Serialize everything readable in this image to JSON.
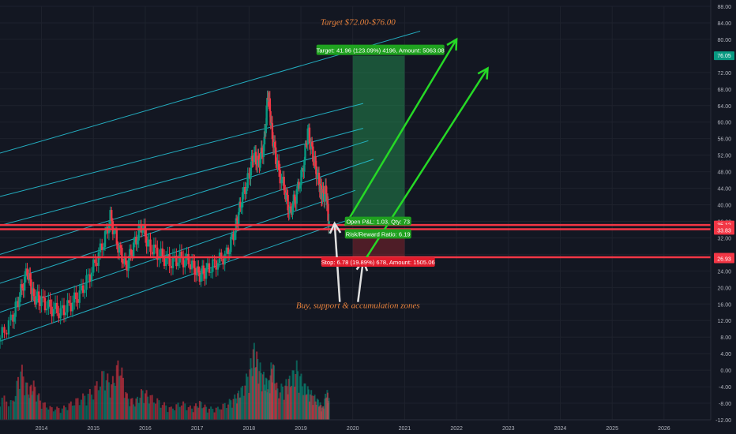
{
  "chart_data": {
    "type": "candlestick",
    "title": "",
    "xlabel": "",
    "ylabel": "",
    "x_ticks": [
      "2014",
      "2015",
      "2016",
      "2017",
      "2018",
      "2019",
      "2020",
      "2021",
      "2022",
      "2023",
      "2024",
      "2025",
      "2026"
    ],
    "x_tick_years": [
      2014,
      2015,
      2016,
      2017,
      2018,
      2019,
      2020,
      2021,
      2022,
      2023,
      2024,
      2025,
      2026
    ],
    "y_ticks": [
      -12,
      -8,
      -4,
      0,
      4,
      8,
      12,
      16,
      20,
      24,
      28,
      32,
      36,
      40,
      44,
      48,
      52,
      56,
      60,
      64,
      68,
      72,
      80,
      84,
      88
    ],
    "ylim": [
      -12,
      88
    ],
    "xlim": [
      2013.2,
      2026.9
    ],
    "grid": true,
    "price_series": {
      "name": "",
      "points": [
        [
          2013.2,
          7.0
        ],
        [
          2013.45,
          12.0
        ],
        [
          2013.6,
          18.0
        ],
        [
          2013.75,
          24.0
        ],
        [
          2013.85,
          18.0
        ],
        [
          2014.0,
          17.0
        ],
        [
          2014.2,
          15.0
        ],
        [
          2014.4,
          14.0
        ],
        [
          2014.6,
          16.0
        ],
        [
          2014.8,
          19.0
        ],
        [
          2015.0,
          24.0
        ],
        [
          2015.2,
          30.0
        ],
        [
          2015.35,
          37.0
        ],
        [
          2015.5,
          30.0
        ],
        [
          2015.65,
          25.0
        ],
        [
          2015.8,
          30.0
        ],
        [
          2015.95,
          35.0
        ],
        [
          2016.1,
          30.0
        ],
        [
          2016.3,
          28.0
        ],
        [
          2016.5,
          26.0
        ],
        [
          2016.7,
          27.0
        ],
        [
          2016.9,
          26.0
        ],
        [
          2017.05,
          23.0
        ],
        [
          2017.2,
          24.0
        ],
        [
          2017.4,
          26.0
        ],
        [
          2017.6,
          28.0
        ],
        [
          2017.75,
          34.0
        ],
        [
          2017.85,
          40.0
        ],
        [
          2018.0,
          46.0
        ],
        [
          2018.1,
          52.0
        ],
        [
          2018.2,
          50.0
        ],
        [
          2018.3,
          54.0
        ],
        [
          2018.38,
          67.0
        ],
        [
          2018.45,
          58.0
        ],
        [
          2018.55,
          50.0
        ],
        [
          2018.7,
          44.0
        ],
        [
          2018.8,
          38.0
        ],
        [
          2018.92,
          42.0
        ],
        [
          2019.05,
          48.0
        ],
        [
          2019.15,
          58.0
        ],
        [
          2019.25,
          52.0
        ],
        [
          2019.35,
          46.0
        ],
        [
          2019.42,
          42.0
        ],
        [
          2019.5,
          43.0
        ],
        [
          2019.55,
          34.5
        ]
      ]
    },
    "volume_series": {
      "name": "",
      "values": [
        4,
        3,
        9,
        5,
        6,
        3,
        2,
        2,
        3,
        4,
        5,
        8,
        6,
        10,
        4,
        3,
        5,
        4,
        3,
        2,
        3,
        2,
        3,
        2,
        2,
        3,
        4,
        5,
        8,
        12,
        9,
        7,
        6,
        10,
        5,
        6,
        7,
        9,
        6,
        5,
        4,
        3,
        2,
        5,
        3
      ]
    },
    "horizontal_levels": [
      {
        "value": 35.12,
        "label": "35.12",
        "color": "#f23645"
      },
      {
        "value": 34.09,
        "label": "34.09",
        "color": "#f23645"
      },
      {
        "value": 27.31,
        "label": "27.31",
        "color": "#f23645"
      }
    ],
    "axis_markers": [
      {
        "value": 76.05,
        "label": "76.05",
        "color": "#089981"
      },
      {
        "value": 33.83,
        "label": "33.83",
        "color": "#f23645"
      },
      {
        "value": 26.93,
        "label": "26.93",
        "color": "#f23645"
      }
    ],
    "channel": {
      "color": "#26c6da",
      "lines": [
        {
          "x1": 2013.2,
          "y1": 7.0,
          "x2": 2019.95,
          "y2": 36.5
        },
        {
          "x1": 2013.2,
          "y1": 14.0,
          "x2": 2020.05,
          "y2": 43.5
        },
        {
          "x1": 2013.2,
          "y1": 21.0,
          "x2": 2020.4,
          "y2": 51.0
        },
        {
          "x1": 2013.2,
          "y1": 28.0,
          "x2": 2020.3,
          "y2": 55.5
        },
        {
          "x1": 2013.2,
          "y1": 35.0,
          "x2": 2020.2,
          "y2": 58.5
        },
        {
          "x1": 2013.2,
          "y1": 42.0,
          "x2": 2020.2,
          "y2": 64.5
        },
        {
          "x1": 2013.2,
          "y1": 52.5,
          "x2": 2021.3,
          "y2": 82.0
        }
      ]
    },
    "position_tool": {
      "target_zone": {
        "x_start": 2020.0,
        "x_end": 2021.0,
        "y_low": 35.12,
        "y_high": 76.05
      },
      "stop_zone": {
        "x_start": 2020.0,
        "x_end": 2021.0,
        "y_low": 27.31,
        "y_high": 34.09
      },
      "target_label": "Target: 41.96 (123.09%) 4196, Amount: 5063.08",
      "stop_label": "Stop: 6.78 (19.89%) 678, Amount: 1505.06",
      "risk_label": "Risk/Reward Ratio: 6.19",
      "open_label": "Open P&L: 1.03, Qty: 73"
    },
    "arrows": [
      {
        "x1": 2019.85,
        "y1": 35.0,
        "x2": 2022.0,
        "y2": 80.0,
        "color": "#26d926"
      },
      {
        "x1": 2020.2,
        "y1": 26.0,
        "x2": 2022.6,
        "y2": 73.0,
        "color": "#26d926"
      },
      {
        "x1": 2019.75,
        "y1": 16.5,
        "x2": 2019.65,
        "y2": 35.5,
        "color": "#e0e0e0"
      },
      {
        "x1": 2020.1,
        "y1": 16.5,
        "x2": 2020.2,
        "y2": 26.5,
        "color": "#e0e0e0"
      }
    ],
    "annotations": [
      {
        "text": "Target $72.00-$76.00",
        "x": 2020.1,
        "y": 83.5,
        "color": "#e8823c"
      },
      {
        "text": "Buy, support & accumulation zones",
        "x": 2020.1,
        "y": 15.0,
        "color": "#e8823c"
      }
    ],
    "colors": {
      "background": "#131722",
      "grid": "#1e222d",
      "axis_text": "#b2b5be",
      "up": "#089981",
      "down": "#f23645"
    }
  }
}
